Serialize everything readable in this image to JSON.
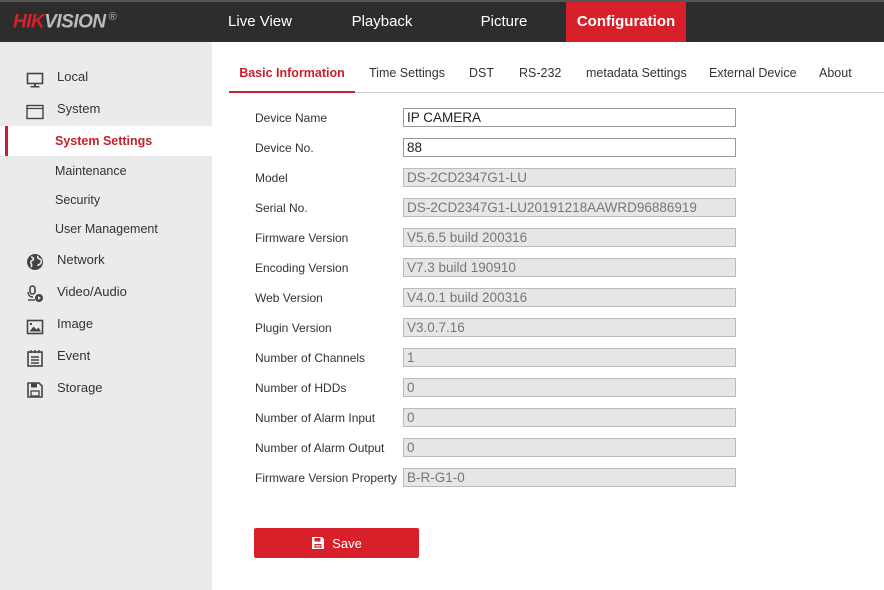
{
  "brand": {
    "logo_red": "HIK",
    "logo_gray": "VISION",
    "reg": "®"
  },
  "topnav": [
    {
      "label": "Live View"
    },
    {
      "label": "Playback"
    },
    {
      "label": "Picture"
    },
    {
      "label": "Configuration",
      "active": true
    }
  ],
  "sidebar": {
    "items": [
      {
        "label": "Local",
        "icon": "monitor-icon"
      },
      {
        "label": "System",
        "icon": "window-icon"
      },
      {
        "label": "System Settings",
        "sub": true,
        "active": true
      },
      {
        "label": "Maintenance",
        "sub": true
      },
      {
        "label": "Security",
        "sub": true
      },
      {
        "label": "User Management",
        "sub": true
      },
      {
        "label": "Network",
        "icon": "globe-icon"
      },
      {
        "label": "Video/Audio",
        "icon": "video-audio-icon"
      },
      {
        "label": "Image",
        "icon": "image-icon"
      },
      {
        "label": "Event",
        "icon": "event-icon"
      },
      {
        "label": "Storage",
        "icon": "storage-icon"
      }
    ]
  },
  "tabs": [
    {
      "label": "Basic Information",
      "active": true
    },
    {
      "label": "Time Settings"
    },
    {
      "label": "DST"
    },
    {
      "label": "RS-232"
    },
    {
      "label": "metadata Settings"
    },
    {
      "label": "External Device"
    },
    {
      "label": "About"
    }
  ],
  "form": [
    {
      "label": "Device Name",
      "value": "IP CAMERA",
      "editable": true
    },
    {
      "label": "Device No.",
      "value": "88",
      "editable": true
    },
    {
      "label": "Model",
      "value": "DS-2CD2347G1-LU"
    },
    {
      "label": "Serial No.",
      "value": "DS-2CD2347G1-LU20191218AAWRD96886919"
    },
    {
      "label": "Firmware Version",
      "value": "V5.6.5 build 200316"
    },
    {
      "label": "Encoding Version",
      "value": "V7.3 build 190910"
    },
    {
      "label": "Web Version",
      "value": "V4.0.1 build 200316"
    },
    {
      "label": "Plugin Version",
      "value": "V3.0.7.16"
    },
    {
      "label": "Number of Channels",
      "value": "1"
    },
    {
      "label": "Number of HDDs",
      "value": "0"
    },
    {
      "label": "Number of Alarm Input",
      "value": "0"
    },
    {
      "label": "Number of Alarm Output",
      "value": "0"
    },
    {
      "label": "Firmware Version Property",
      "value": "B-R-G1-0"
    }
  ],
  "save_label": "Save",
  "colors": {
    "accent": "#d7202a",
    "topbar": "#2d2d2d",
    "sidebar": "#ebebeb"
  }
}
